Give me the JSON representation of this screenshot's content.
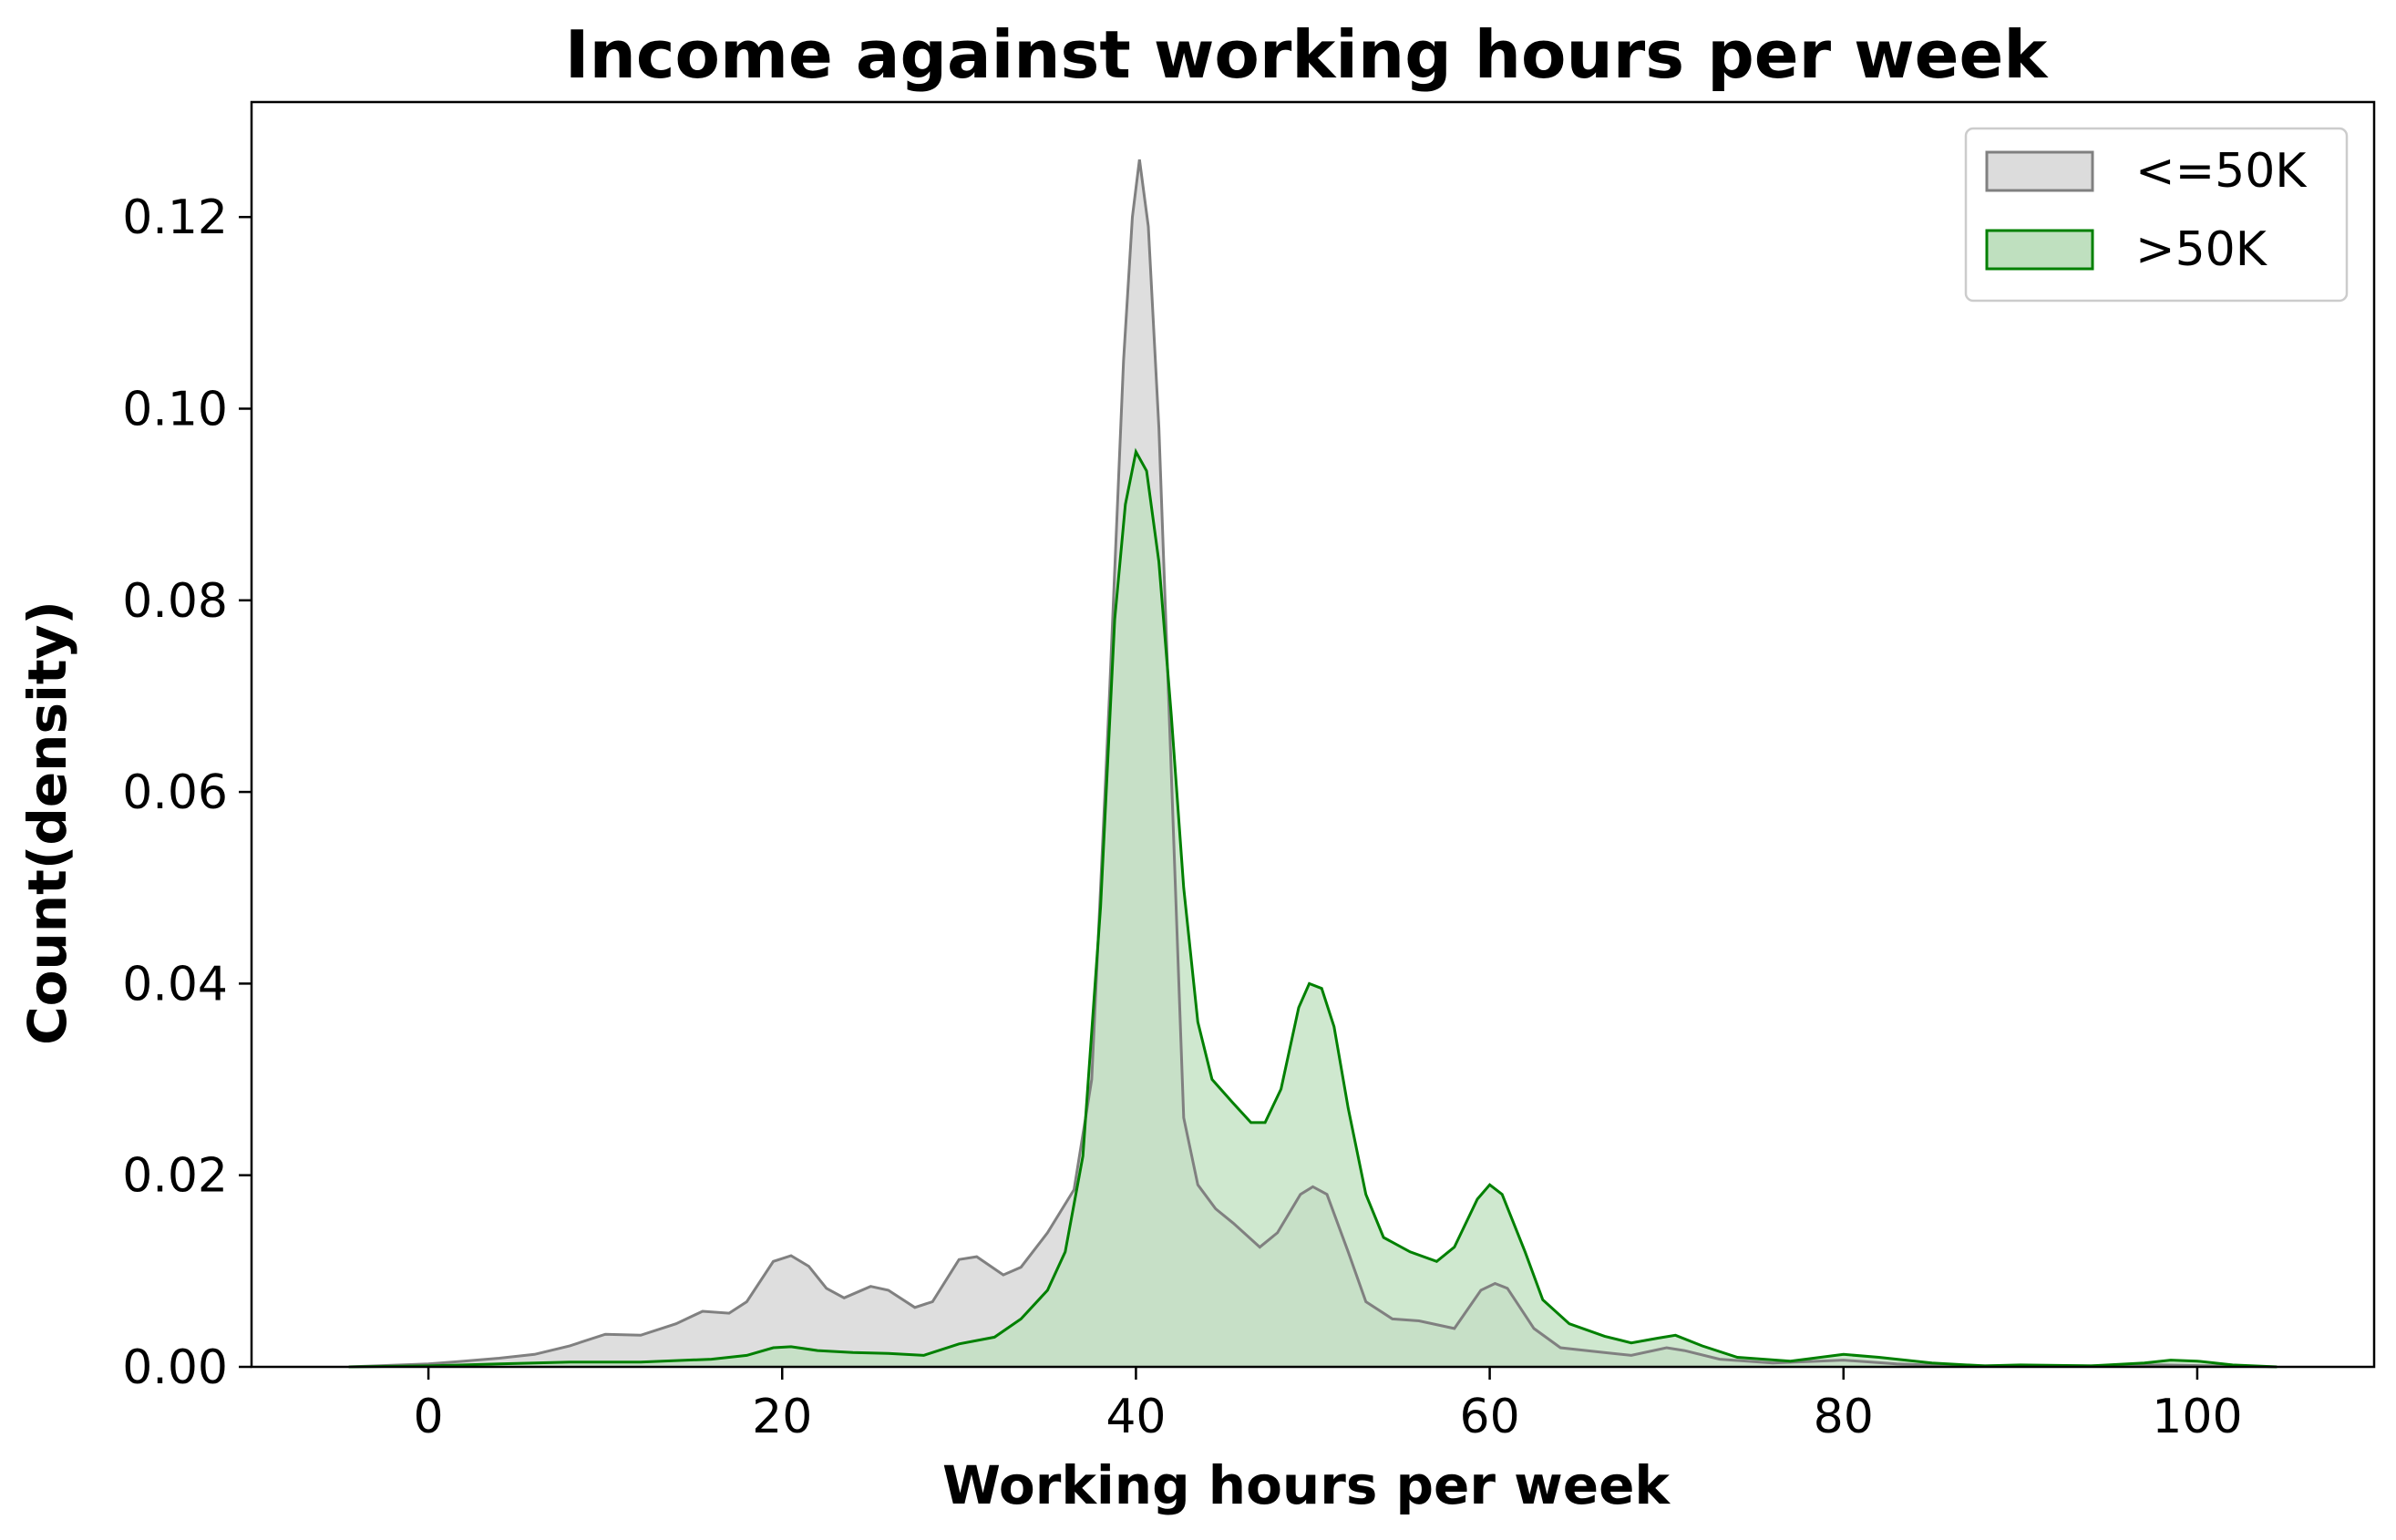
{
  "chart_data": {
    "type": "area",
    "title": "Income against working hours per week",
    "xlabel": "Working hours per week",
    "ylabel": "Count(density)",
    "xlim": [
      -10,
      110
    ],
    "ylim": [
      0,
      0.132
    ],
    "x_ticks": [
      0,
      20,
      40,
      60,
      80,
      100
    ],
    "y_ticks": [
      0.0,
      0.02,
      0.04,
      0.06,
      0.08,
      0.1,
      0.12
    ],
    "y_tick_labels": [
      "0.00",
      "0.02",
      "0.04",
      "0.06",
      "0.08",
      "0.10",
      "0.12"
    ],
    "grid": false,
    "legend_position": "top-right",
    "series": [
      {
        "name": "<=50K",
        "line_color": "#808080",
        "fill_color": "#dcdcdc",
        "points": [
          [
            -4.5,
            0.0
          ],
          [
            0,
            0.0003
          ],
          [
            2,
            0.0006
          ],
          [
            4,
            0.0009
          ],
          [
            6,
            0.0013
          ],
          [
            8,
            0.0022
          ],
          [
            10,
            0.0034
          ],
          [
            12,
            0.0033
          ],
          [
            14,
            0.0045
          ],
          [
            15.5,
            0.0058
          ],
          [
            17,
            0.0056
          ],
          [
            18,
            0.0068
          ],
          [
            19.5,
            0.011
          ],
          [
            20.5,
            0.0116
          ],
          [
            21.5,
            0.0105
          ],
          [
            22.5,
            0.0082
          ],
          [
            23.5,
            0.0072
          ],
          [
            25,
            0.0084
          ],
          [
            26,
            0.008
          ],
          [
            27.5,
            0.0062
          ],
          [
            28.5,
            0.0068
          ],
          [
            30,
            0.0112
          ],
          [
            31,
            0.0115
          ],
          [
            32.5,
            0.0096
          ],
          [
            33.5,
            0.0104
          ],
          [
            35,
            0.014
          ],
          [
            36.5,
            0.0185
          ],
          [
            37.5,
            0.03
          ],
          [
            38.5,
            0.07
          ],
          [
            39.3,
            0.105
          ],
          [
            39.8,
            0.12
          ],
          [
            40.2,
            0.126
          ],
          [
            40.7,
            0.119
          ],
          [
            41.3,
            0.098
          ],
          [
            42,
            0.062
          ],
          [
            42.7,
            0.026
          ],
          [
            43.5,
            0.019
          ],
          [
            44.5,
            0.0165
          ],
          [
            45.5,
            0.015
          ],
          [
            47,
            0.0125
          ],
          [
            48,
            0.014
          ],
          [
            49.3,
            0.018
          ],
          [
            50,
            0.0188
          ],
          [
            50.8,
            0.018
          ],
          [
            52,
            0.012
          ],
          [
            53,
            0.0068
          ],
          [
            54.5,
            0.005
          ],
          [
            56,
            0.0048
          ],
          [
            58,
            0.004
          ],
          [
            59.5,
            0.008
          ],
          [
            60.3,
            0.0087
          ],
          [
            61,
            0.0082
          ],
          [
            62.5,
            0.004
          ],
          [
            64,
            0.002
          ],
          [
            66,
            0.0016
          ],
          [
            68,
            0.0012
          ],
          [
            70,
            0.002
          ],
          [
            71,
            0.0017
          ],
          [
            73,
            0.0008
          ],
          [
            76,
            0.0004
          ],
          [
            80,
            0.0007
          ],
          [
            83,
            0.0003
          ],
          [
            86,
            0.0001
          ],
          [
            90,
            0.0001
          ],
          [
            94,
            0.0001
          ],
          [
            98,
            0.0002
          ],
          [
            101,
            0.0001
          ],
          [
            104.5,
            0.0
          ]
        ]
      },
      {
        "name": ">50K",
        "line_color": "#008000",
        "fill_color": "#bfe0bf",
        "points": [
          [
            -4.5,
            0.0
          ],
          [
            0,
            0.0001
          ],
          [
            4,
            0.0003
          ],
          [
            8,
            0.0005
          ],
          [
            12,
            0.0005
          ],
          [
            16,
            0.0008
          ],
          [
            18,
            0.0012
          ],
          [
            19.5,
            0.002
          ],
          [
            20.5,
            0.0021
          ],
          [
            22,
            0.0017
          ],
          [
            24,
            0.0015
          ],
          [
            26,
            0.0014
          ],
          [
            28,
            0.0012
          ],
          [
            30,
            0.0024
          ],
          [
            32,
            0.0031
          ],
          [
            33.5,
            0.005
          ],
          [
            35,
            0.008
          ],
          [
            36,
            0.012
          ],
          [
            37,
            0.022
          ],
          [
            38,
            0.048
          ],
          [
            38.8,
            0.078
          ],
          [
            39.4,
            0.09
          ],
          [
            40,
            0.0955
          ],
          [
            40.6,
            0.0935
          ],
          [
            41.3,
            0.084
          ],
          [
            42,
            0.068
          ],
          [
            42.7,
            0.05
          ],
          [
            43.5,
            0.036
          ],
          [
            44.3,
            0.03
          ],
          [
            45.5,
            0.0275
          ],
          [
            46.5,
            0.0255
          ],
          [
            47.3,
            0.0255
          ],
          [
            48.2,
            0.029
          ],
          [
            49.2,
            0.0375
          ],
          [
            49.8,
            0.04
          ],
          [
            50.5,
            0.0395
          ],
          [
            51.2,
            0.0355
          ],
          [
            52,
            0.027
          ],
          [
            53,
            0.018
          ],
          [
            54,
            0.0135
          ],
          [
            55.5,
            0.012
          ],
          [
            57,
            0.011
          ],
          [
            58,
            0.0125
          ],
          [
            59.3,
            0.0175
          ],
          [
            60,
            0.019
          ],
          [
            60.7,
            0.018
          ],
          [
            62,
            0.012
          ],
          [
            63,
            0.007
          ],
          [
            64.5,
            0.0045
          ],
          [
            66.5,
            0.0032
          ],
          [
            68,
            0.0025
          ],
          [
            69.5,
            0.003
          ],
          [
            70.5,
            0.0033
          ],
          [
            72,
            0.0022
          ],
          [
            74,
            0.001
          ],
          [
            77,
            0.0006
          ],
          [
            80,
            0.0013
          ],
          [
            82,
            0.001
          ],
          [
            85,
            0.0004
          ],
          [
            88,
            0.0001
          ],
          [
            90,
            0.0002
          ],
          [
            94,
            0.0001
          ],
          [
            97,
            0.0004
          ],
          [
            98.5,
            0.0007
          ],
          [
            100,
            0.0006
          ],
          [
            102,
            0.0002
          ],
          [
            104.5,
            0.0
          ]
        ]
      }
    ]
  }
}
